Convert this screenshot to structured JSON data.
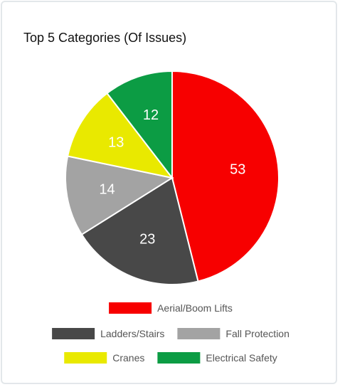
{
  "chart_data": {
    "type": "pie",
    "title": "Top 5 Categories (Of Issues)",
    "slices": [
      {
        "label": "Aerial/Boom Lifts",
        "value": 53,
        "color": "#f70000"
      },
      {
        "label": "Ladders/Stairs",
        "value": 23,
        "color": "#484848"
      },
      {
        "label": "Fall Protection",
        "value": 14,
        "color": "#a3a3a3"
      },
      {
        "label": "Cranes",
        "value": 13,
        "color": "#e9e900"
      },
      {
        "label": "Electrical Safety",
        "value": 12,
        "color": "#0c9c44"
      }
    ],
    "legend_position": "bottom"
  }
}
